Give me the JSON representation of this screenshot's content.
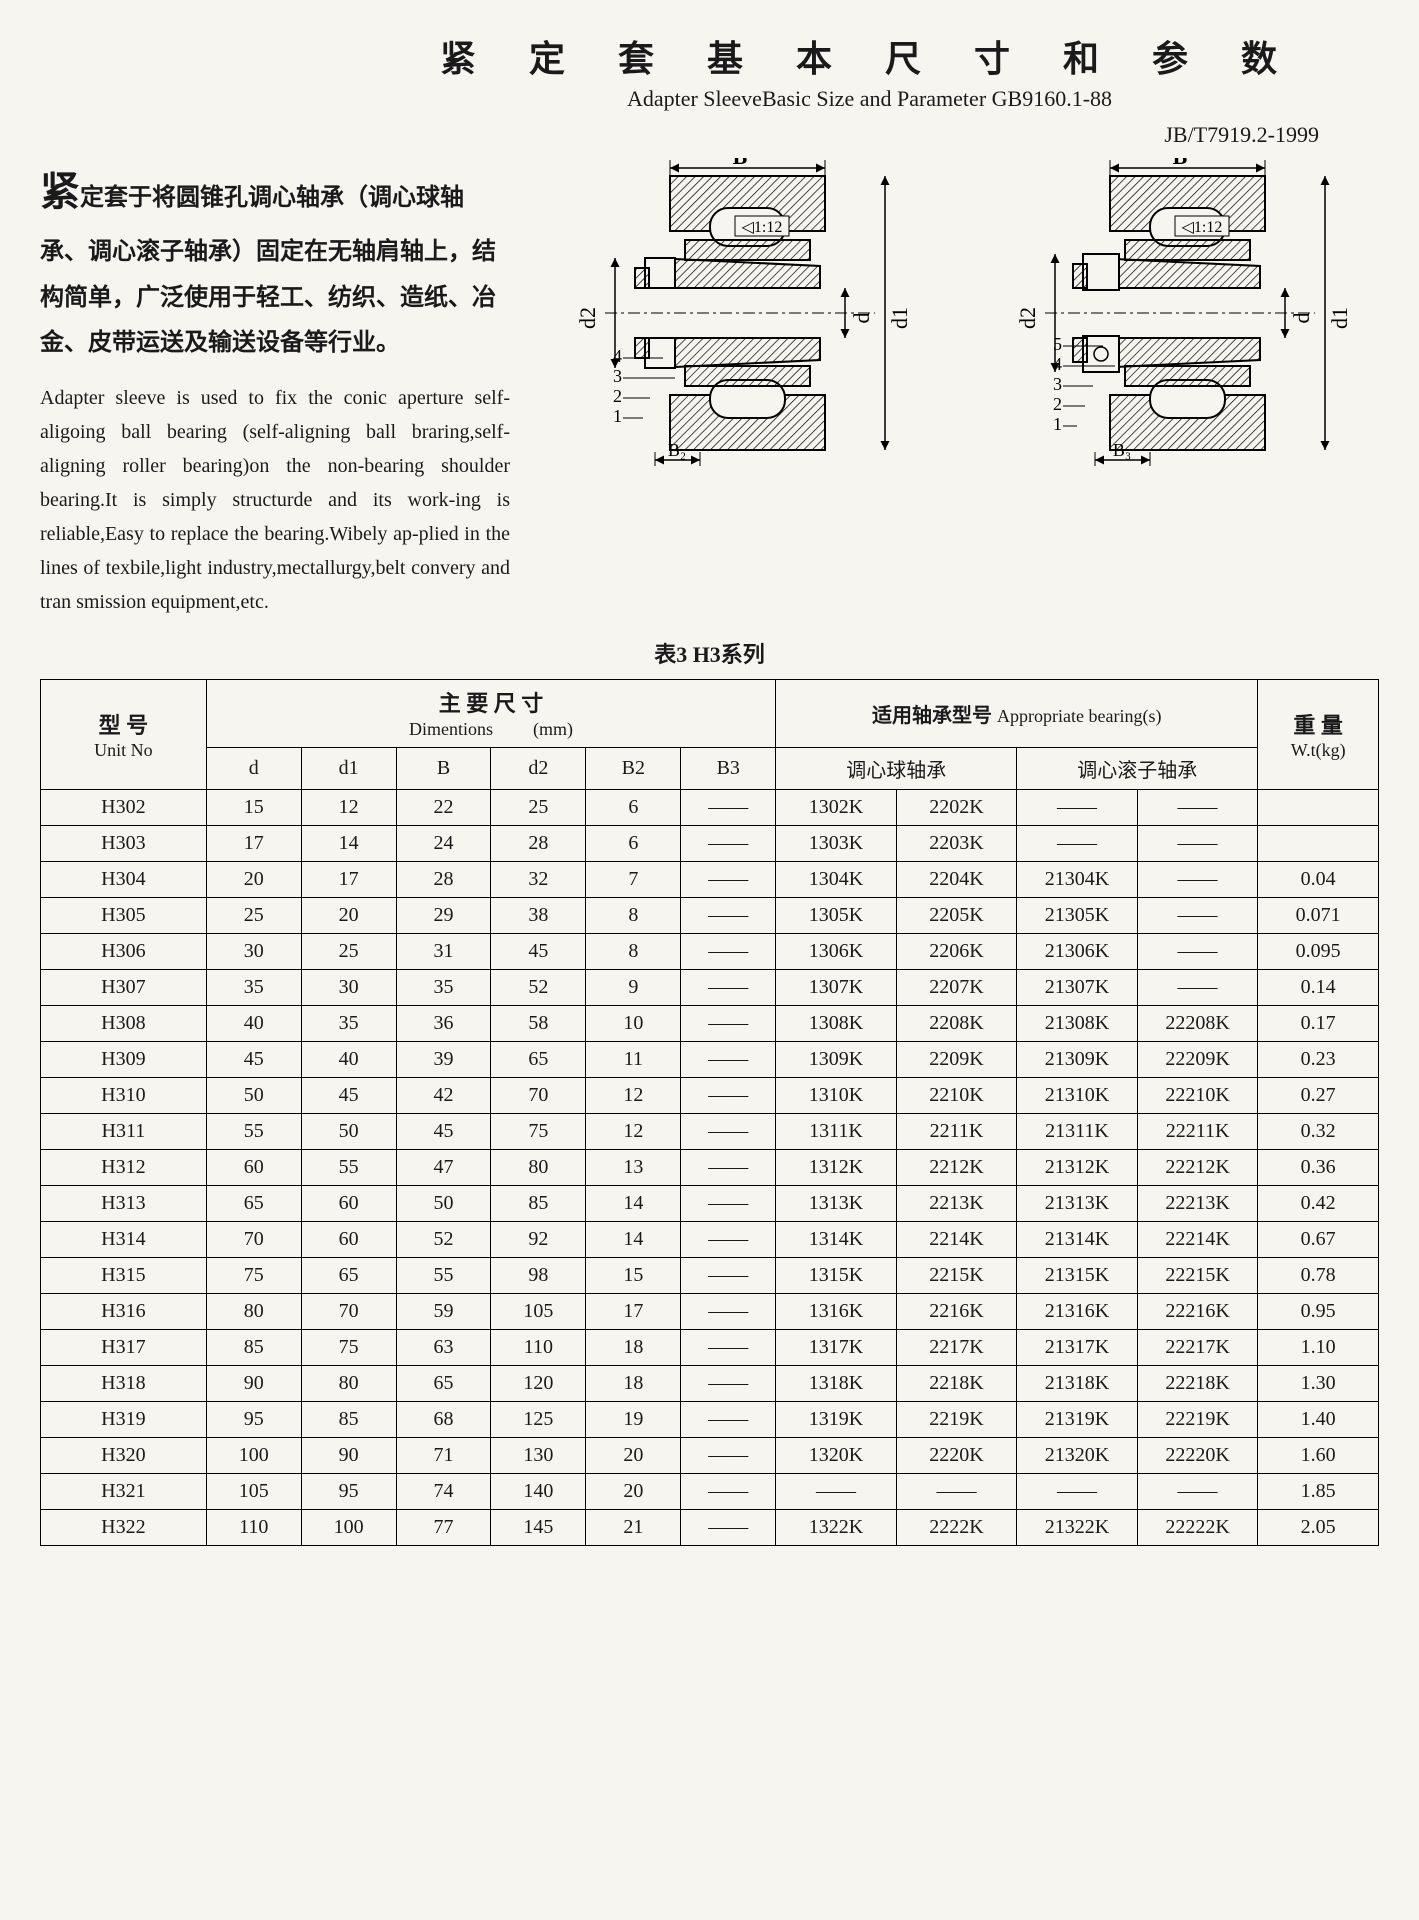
{
  "title_zh": "紧 定 套 基 本 尺 寸 和 参 数",
  "title_en": "Adapter  SleeveBasic  Size and Parameter  GB9160.1-88",
  "std_code": "JB/T7919.2-1999",
  "para_zh_lead": "紧",
  "para_zh": "定套于将圆锥孔调心轴承（调心球轴承、调心滚子轴承）固定在无轴肩轴上，结构简单，广泛使用于轻工、纺织、造纸、冶金、皮带运送及输送设备等行业。",
  "para_en": "Adapter sleeve is used to fix the conic aperture self-aligoing ball bearing (self-aligning ball braring,self-aligning roller bearing)on the non-bearing shoulder bearing.It is simply structurde and its work-ing is reliable,Easy to replace the bearing.Wibely ap-plied in the lines of texbile,light industry,mectallurgy,belt convery and tran smission equipment,etc.",
  "diagrams": {
    "taper_label": "◁1:12",
    "dim_B": "B",
    "dim_B2": "B₂",
    "dim_B3": "B₃",
    "dim_d": "d",
    "dim_d1": "d1",
    "dim_d2": "d2",
    "left_parts": [
      "1",
      "2",
      "3",
      "4"
    ],
    "right_parts": [
      "1",
      "2",
      "3",
      "4",
      "5"
    ],
    "line_color": "#000000",
    "hatch_color": "#000000",
    "bg_color": "#f6f5f0"
  },
  "table_caption": "表3  H3系列",
  "headers": {
    "unit_zh": "型 号",
    "unit_en": "Unit No",
    "dim_zh": "主 要 尺 寸",
    "dim_en": "Dimentions",
    "dim_unit": "(mm)",
    "dim_cols": [
      "d",
      "d1",
      "B",
      "d2",
      "B2",
      "B3"
    ],
    "bearing_zh": "适用轴承型号",
    "bearing_en": "Appropriate bearing(s)",
    "bearing_sub": [
      "调心球轴承",
      "调心滚子轴承"
    ],
    "wt_zh": "重 量",
    "wt_en": "W.t(kg)"
  },
  "rows": [
    {
      "u": "H302",
      "d": "15",
      "d1": "12",
      "B": "22",
      "d2": "25",
      "B2": "6",
      "B3": "——",
      "b1": "1302K",
      "b2": "2202K",
      "b3": "——",
      "b4": "——",
      "wt": ""
    },
    {
      "u": "H303",
      "d": "17",
      "d1": "14",
      "B": "24",
      "d2": "28",
      "B2": "6",
      "B3": "——",
      "b1": "1303K",
      "b2": "2203K",
      "b3": "——",
      "b4": "——",
      "wt": ""
    },
    {
      "u": "H304",
      "d": "20",
      "d1": "17",
      "B": "28",
      "d2": "32",
      "B2": "7",
      "B3": "——",
      "b1": "1304K",
      "b2": "2204K",
      "b3": "21304K",
      "b4": "——",
      "wt": "0.04"
    },
    {
      "u": "H305",
      "d": "25",
      "d1": "20",
      "B": "29",
      "d2": "38",
      "B2": "8",
      "B3": "——",
      "b1": "1305K",
      "b2": "2205K",
      "b3": "21305K",
      "b4": "——",
      "wt": "0.071"
    },
    {
      "u": "H306",
      "d": "30",
      "d1": "25",
      "B": "31",
      "d2": "45",
      "B2": "8",
      "B3": "——",
      "b1": "1306K",
      "b2": "2206K",
      "b3": "21306K",
      "b4": "——",
      "wt": "0.095"
    },
    {
      "u": "H307",
      "d": "35",
      "d1": "30",
      "B": "35",
      "d2": "52",
      "B2": "9",
      "B3": "——",
      "b1": "1307K",
      "b2": "2207K",
      "b3": "21307K",
      "b4": "——",
      "wt": "0.14"
    },
    {
      "u": "H308",
      "d": "40",
      "d1": "35",
      "B": "36",
      "d2": "58",
      "B2": "10",
      "B3": "——",
      "b1": "1308K",
      "b2": "2208K",
      "b3": "21308K",
      "b4": "22208K",
      "wt": "0.17"
    },
    {
      "u": "H309",
      "d": "45",
      "d1": "40",
      "B": "39",
      "d2": "65",
      "B2": "11",
      "B3": "——",
      "b1": "1309K",
      "b2": "2209K",
      "b3": "21309K",
      "b4": "22209K",
      "wt": "0.23"
    },
    {
      "u": "H310",
      "d": "50",
      "d1": "45",
      "B": "42",
      "d2": "70",
      "B2": "12",
      "B3": "——",
      "b1": "1310K",
      "b2": "2210K",
      "b3": "21310K",
      "b4": "22210K",
      "wt": "0.27"
    },
    {
      "u": "H311",
      "d": "55",
      "d1": "50",
      "B": "45",
      "d2": "75",
      "B2": "12",
      "B3": "——",
      "b1": "1311K",
      "b2": "2211K",
      "b3": "21311K",
      "b4": "22211K",
      "wt": "0.32"
    },
    {
      "u": "H312",
      "d": "60",
      "d1": "55",
      "B": "47",
      "d2": "80",
      "B2": "13",
      "B3": "——",
      "b1": "1312K",
      "b2": "2212K",
      "b3": "21312K",
      "b4": "22212K",
      "wt": "0.36"
    },
    {
      "u": "H313",
      "d": "65",
      "d1": "60",
      "B": "50",
      "d2": "85",
      "B2": "14",
      "B3": "——",
      "b1": "1313K",
      "b2": "2213K",
      "b3": "21313K",
      "b4": "22213K",
      "wt": "0.42"
    },
    {
      "u": "H314",
      "d": "70",
      "d1": "60",
      "B": "52",
      "d2": "92",
      "B2": "14",
      "B3": "——",
      "b1": "1314K",
      "b2": "2214K",
      "b3": "21314K",
      "b4": "22214K",
      "wt": "0.67"
    },
    {
      "u": "H315",
      "d": "75",
      "d1": "65",
      "B": "55",
      "d2": "98",
      "B2": "15",
      "B3": "——",
      "b1": "1315K",
      "b2": "2215K",
      "b3": "21315K",
      "b4": "22215K",
      "wt": "0.78"
    },
    {
      "u": "H316",
      "d": "80",
      "d1": "70",
      "B": "59",
      "d2": "105",
      "B2": "17",
      "B3": "——",
      "b1": "1316K",
      "b2": "2216K",
      "b3": "21316K",
      "b4": "22216K",
      "wt": "0.95"
    },
    {
      "u": "H317",
      "d": "85",
      "d1": "75",
      "B": "63",
      "d2": "110",
      "B2": "18",
      "B3": "——",
      "b1": "1317K",
      "b2": "2217K",
      "b3": "21317K",
      "b4": "22217K",
      "wt": "1.10"
    },
    {
      "u": "H318",
      "d": "90",
      "d1": "80",
      "B": "65",
      "d2": "120",
      "B2": "18",
      "B3": "——",
      "b1": "1318K",
      "b2": "2218K",
      "b3": "21318K",
      "b4": "22218K",
      "wt": "1.30"
    },
    {
      "u": "H319",
      "d": "95",
      "d1": "85",
      "B": "68",
      "d2": "125",
      "B2": "19",
      "B3": "——",
      "b1": "1319K",
      "b2": "2219K",
      "b3": "21319K",
      "b4": "22219K",
      "wt": "1.40"
    },
    {
      "u": "H320",
      "d": "100",
      "d1": "90",
      "B": "71",
      "d2": "130",
      "B2": "20",
      "B3": "——",
      "b1": "1320K",
      "b2": "2220K",
      "b3": "21320K",
      "b4": "22220K",
      "wt": "1.60"
    },
    {
      "u": "H321",
      "d": "105",
      "d1": "95",
      "B": "74",
      "d2": "140",
      "B2": "20",
      "B3": "——",
      "b1": "——",
      "b2": "——",
      "b3": "——",
      "b4": "——",
      "wt": "1.85"
    },
    {
      "u": "H322",
      "d": "110",
      "d1": "100",
      "B": "77",
      "d2": "145",
      "B2": "21",
      "B3": "——",
      "b1": "1322K",
      "b2": "2222K",
      "b3": "21322K",
      "b4": "22222K",
      "wt": "2.05"
    }
  ]
}
